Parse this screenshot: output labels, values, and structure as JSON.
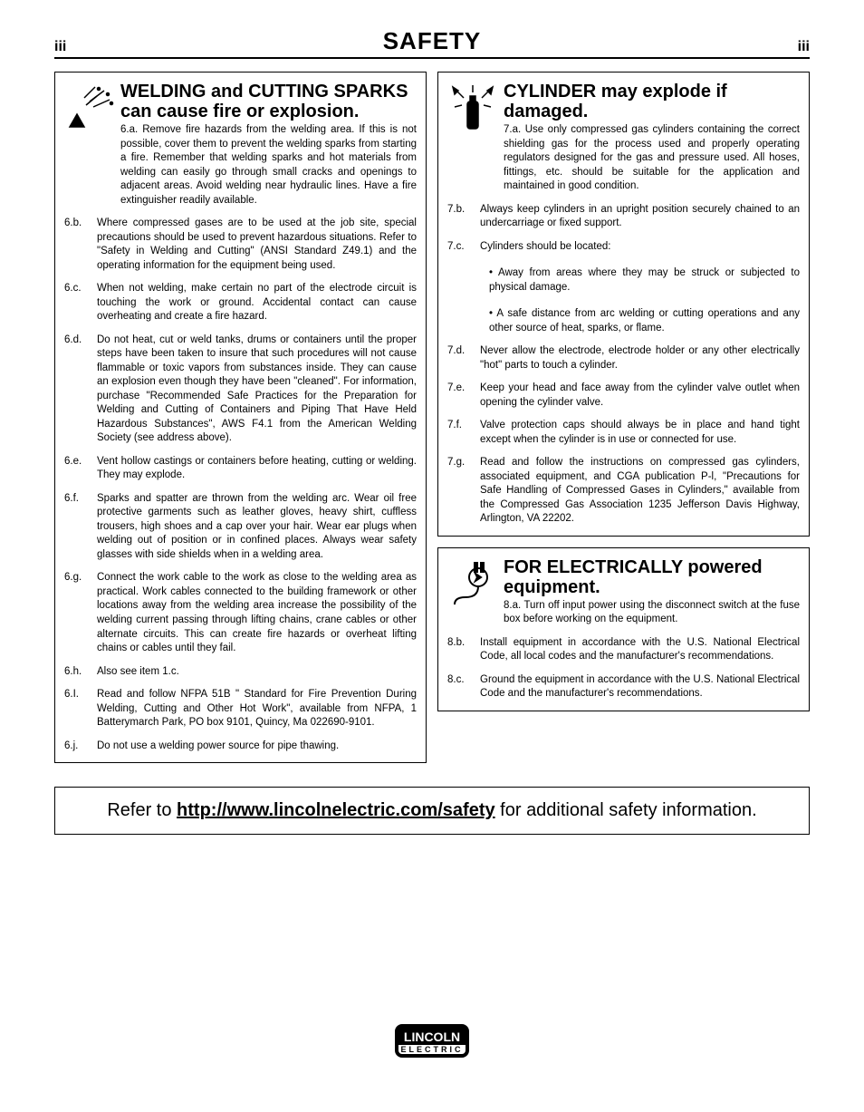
{
  "pageNumber": "iii",
  "pageTitle": "SAFETY",
  "welding": {
    "title": "WELDING and CUTTING SPARKS can cause fire or explosion.",
    "lead": "6.a. Remove fire hazards from the welding area. If this is not possible, cover them to prevent the welding sparks from starting a fire. Remember that welding sparks and hot materials from welding can easily go through small cracks and openings to adjacent areas. Avoid welding near hydraulic lines. Have a fire extinguisher readily available.",
    "items": [
      {
        "n": "6.b.",
        "t": "Where compressed gases are to be used at the job site, special precautions should be used to prevent hazardous situations. Refer to \"Safety in Welding and Cutting\" (ANSI Standard Z49.1) and the operating information for the equipment being used."
      },
      {
        "n": "6.c.",
        "t": "When not welding, make certain no part of the electrode circuit is touching the work or ground. Accidental contact can cause overheating and create a fire hazard."
      },
      {
        "n": "6.d.",
        "t": "Do not heat, cut or weld tanks, drums or containers until the proper steps have been taken to insure that such procedures will not cause flammable or toxic vapors from substances inside. They can cause an explosion even though they have been \"cleaned\". For information, purchase \"Recommended Safe Practices for the Preparation for Welding and Cutting of Containers and Piping That Have Held Hazardous Substances\", AWS F4.1 from the American Welding Society (see address above)."
      },
      {
        "n": "6.e.",
        "t": "Vent hollow castings or containers before heating, cutting or welding. They may explode."
      },
      {
        "n": "6.f.",
        "t": "Sparks and spatter are thrown from the welding arc. Wear oil free protective garments such as leather gloves, heavy shirt, cuffless trousers, high shoes and a cap over your hair. Wear ear plugs when welding out of position or in confined places. Always wear safety glasses with side shields when in a welding area."
      },
      {
        "n": "6.g.",
        "t": "Connect the work cable to the work as close to the welding area as practical. Work cables connected to the building framework or other locations away from the welding area increase the possibility of the welding current passing through lifting chains, crane cables or other alternate circuits. This can create fire hazards or overheat lifting chains or cables until they fail."
      },
      {
        "n": "6.h.",
        "t": "Also see item 1.c."
      },
      {
        "n": "6.I.",
        "t": "Read and follow NFPA 51B \" Standard for Fire Prevention During Welding, Cutting and Other Hot Work\", available from NFPA, 1 Batterymarch Park, PO box 9101, Quincy, Ma 022690-9101."
      },
      {
        "n": "6.j.",
        "t": "Do not use a welding power source for pipe thawing."
      }
    ]
  },
  "cylinder": {
    "title": "CYLINDER may explode if damaged.",
    "lead": "7.a. Use only compressed gas cylinders containing the correct shielding gas for the process used and properly operating regulators designed for the gas and pressure used. All hoses, fittings, etc. should be suitable for the application and maintained in good condition.",
    "items": [
      {
        "n": "7.b.",
        "t": "Always keep cylinders in an upright position securely chained to an undercarriage or fixed support."
      },
      {
        "n": "7.c.",
        "t": "Cylinders should be located:",
        "subs": [
          "• Away from areas where they may be struck or subjected to physical damage.",
          "• A safe distance from arc welding or cutting operations and any other source of heat, sparks, or flame."
        ]
      },
      {
        "n": "7.d.",
        "t": "Never allow the electrode, electrode holder or any other electrically \"hot\" parts to touch a cylinder."
      },
      {
        "n": "7.e.",
        "t": "Keep your head and face away from the cylinder valve outlet when opening the cylinder valve."
      },
      {
        "n": "7.f.",
        "t": "Valve protection caps should always be in place and hand tight except when the cylinder is in use or connected for use."
      },
      {
        "n": "7.g.",
        "t": "Read and follow the instructions on compressed gas cylinders, associated equipment, and CGA publication P-l, \"Precautions for Safe Handling of Compressed Gases in Cylinders,\" available from the Compressed Gas Association 1235 Jefferson Davis Highway, Arlington, VA 22202."
      }
    ]
  },
  "electric": {
    "title": "FOR ELECTRICALLY powered equipment.",
    "lead": "8.a. Turn off input power using the disconnect switch at the fuse box before working on the equipment.",
    "items": [
      {
        "n": "8.b.",
        "t": "Install equipment in accordance with the U.S. National Electrical Code, all local codes and the manufacturer's recommendations."
      },
      {
        "n": "8.c.",
        "t": "Ground the equipment in accordance with the U.S. National Electrical Code and the manufacturer's recommendations."
      }
    ]
  },
  "footer": {
    "prefix": "Refer to ",
    "link": "http://www.lincolnelectric.com/safety",
    "suffix": " for additional safety information."
  },
  "logo": {
    "top": "LINCOLN",
    "bottom": "ELECTRIC"
  },
  "colors": {
    "border": "#000000",
    "bg": "#ffffff",
    "text": "#000000"
  }
}
